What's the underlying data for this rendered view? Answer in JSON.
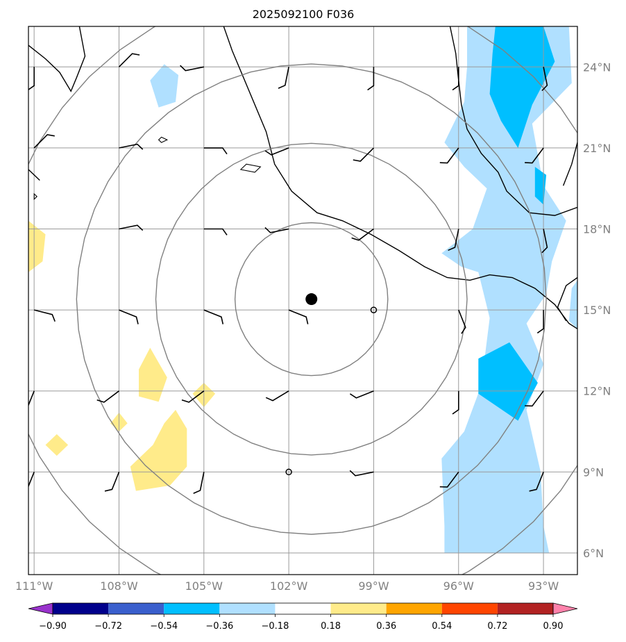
{
  "chart_data": {
    "type": "heatmap",
    "title": "2025092100 F036",
    "projection": "plate-carree",
    "lon_range": [
      -111.2,
      -91.8
    ],
    "lat_range": [
      5.2,
      25.5
    ],
    "lon_ticks": [
      -111,
      -108,
      -105,
      -102,
      -99,
      -96,
      -93
    ],
    "lon_tick_labels": [
      "111°W",
      "108°W",
      "105°W",
      "102°W",
      "99°W",
      "96°W",
      "93°W"
    ],
    "lat_ticks": [
      6,
      9,
      12,
      15,
      18,
      21,
      24
    ],
    "lat_tick_labels": [
      "6°N",
      "9°N",
      "12°N",
      "15°N",
      "18°N",
      "21°N",
      "24°N"
    ],
    "grid": true,
    "center_marker": {
      "lon": -101.2,
      "lat": 15.4
    },
    "range_rings_deg": [
      2.7,
      5.5,
      8.3,
      11.1
    ],
    "colorbar": {
      "orientation": "horizontal",
      "extend": "both",
      "levels": [
        -0.9,
        -0.72,
        -0.54,
        -0.36,
        -0.18,
        0.18,
        0.36,
        0.54,
        0.72,
        0.9
      ],
      "tick_labels": [
        "−0.90",
        "−0.72",
        "−0.54",
        "−0.36",
        "−0.18",
        "0.18",
        "0.36",
        "0.54",
        "0.72",
        "0.90"
      ],
      "colors": [
        "#9932cc",
        "#00008b",
        "#3a5fcd",
        "#00bfff",
        "#b0e0ff",
        "#ffffff",
        "#ffeb8a",
        "#ffa500",
        "#ff4500",
        "#b22222",
        "#ff82ab"
      ]
    },
    "shaded_regions": [
      {
        "level": -0.36,
        "color": "#b0e0ff",
        "points": [
          [
            -95.7,
            25.5
          ],
          [
            -92.1,
            25.5
          ],
          [
            -92.0,
            23.4
          ],
          [
            -93.4,
            21.9
          ],
          [
            -93.0,
            19.6
          ],
          [
            -92.2,
            18.3
          ],
          [
            -92.7,
            16.8
          ],
          [
            -92.9,
            15.6
          ],
          [
            -93.6,
            14.5
          ],
          [
            -93.0,
            13.0
          ],
          [
            -93.6,
            11.3
          ],
          [
            -93.1,
            9.0
          ],
          [
            -93.0,
            7.0
          ],
          [
            -92.8,
            6.0
          ],
          [
            -96.5,
            6.0
          ],
          [
            -96.5,
            7.0
          ],
          [
            -96.6,
            9.5
          ],
          [
            -95.8,
            10.5
          ],
          [
            -95.2,
            12.2
          ],
          [
            -94.9,
            14.7
          ],
          [
            -95.3,
            16.4
          ],
          [
            -95.9,
            16.6
          ],
          [
            -96.6,
            17.1
          ],
          [
            -95.5,
            18.0
          ],
          [
            -95.0,
            19.5
          ],
          [
            -95.8,
            20.3
          ],
          [
            -96.5,
            21.2
          ],
          [
            -95.8,
            22.7
          ],
          [
            -95.7,
            24.0
          ]
        ]
      },
      {
        "level": -0.36,
        "color": "#b0e0ff",
        "points": [
          [
            -91.8,
            16.1
          ],
          [
            -92.0,
            15.8
          ],
          [
            -92.1,
            14.6
          ],
          [
            -91.8,
            14.3
          ]
        ]
      },
      {
        "level": -0.36,
        "color": "#b0e0ff",
        "points": [
          [
            -106.4,
            24.1
          ],
          [
            -105.9,
            23.7
          ],
          [
            -106.0,
            22.7
          ],
          [
            -106.6,
            22.5
          ],
          [
            -106.9,
            23.5
          ]
        ]
      },
      {
        "level": -0.54,
        "color": "#00bfff",
        "points": [
          [
            -94.7,
            25.5
          ],
          [
            -93.0,
            25.5
          ],
          [
            -92.6,
            24.2
          ],
          [
            -93.4,
            22.6
          ],
          [
            -93.9,
            21.0
          ],
          [
            -94.5,
            22.0
          ],
          [
            -94.9,
            23.0
          ],
          [
            -94.8,
            24.5
          ]
        ]
      },
      {
        "level": -0.54,
        "color": "#00bfff",
        "points": [
          [
            -93.3,
            20.3
          ],
          [
            -92.9,
            20.0
          ],
          [
            -93.0,
            18.9
          ],
          [
            -93.3,
            19.2
          ]
        ]
      },
      {
        "level": -0.54,
        "color": "#00bfff",
        "points": [
          [
            -94.2,
            13.8
          ],
          [
            -93.2,
            12.3
          ],
          [
            -93.9,
            10.9
          ],
          [
            -95.3,
            11.9
          ],
          [
            -95.3,
            13.2
          ]
        ]
      },
      {
        "level": 0.18,
        "color": "#ffeb8a",
        "points": [
          [
            -111.2,
            18.3
          ],
          [
            -110.6,
            17.8
          ],
          [
            -110.7,
            16.8
          ],
          [
            -111.2,
            16.4
          ]
        ]
      },
      {
        "level": 0.18,
        "color": "#ffeb8a",
        "points": [
          [
            -106.9,
            13.6
          ],
          [
            -106.3,
            12.5
          ],
          [
            -106.6,
            11.6
          ],
          [
            -107.3,
            11.8
          ],
          [
            -107.3,
            12.8
          ]
        ]
      },
      {
        "level": 0.18,
        "color": "#ffeb8a",
        "points": [
          [
            -105.0,
            12.3
          ],
          [
            -104.6,
            11.9
          ],
          [
            -105.0,
            11.4
          ],
          [
            -105.4,
            11.9
          ]
        ]
      },
      {
        "level": 0.18,
        "color": "#ffeb8a",
        "points": [
          [
            -108.0,
            11.2
          ],
          [
            -107.7,
            10.8
          ],
          [
            -108.0,
            10.5
          ],
          [
            -108.3,
            10.8
          ]
        ]
      },
      {
        "level": 0.18,
        "color": "#ffeb8a",
        "points": [
          [
            -110.2,
            10.4
          ],
          [
            -109.8,
            10.0
          ],
          [
            -110.2,
            9.6
          ],
          [
            -110.6,
            10.0
          ]
        ]
      },
      {
        "level": 0.18,
        "color": "#ffeb8a",
        "points": [
          [
            -106.0,
            11.3
          ],
          [
            -105.6,
            10.6
          ],
          [
            -105.6,
            9.2
          ],
          [
            -106.2,
            8.5
          ],
          [
            -107.4,
            8.3
          ],
          [
            -107.6,
            9.2
          ],
          [
            -106.8,
            10.0
          ],
          [
            -106.4,
            10.8
          ]
        ]
      }
    ],
    "wind_barbs": [
      {
        "lon": -111,
        "lat": 24,
        "u": 0,
        "v": -5
      },
      {
        "lon": -108,
        "lat": 24,
        "u": 3,
        "v": 3
      },
      {
        "lon": -105,
        "lat": 24,
        "u": -5,
        "v": -1
      },
      {
        "lon": -102,
        "lat": 24,
        "u": -1,
        "v": -5
      },
      {
        "lon": -99,
        "lat": 24,
        "u": 0,
        "v": -5
      },
      {
        "lon": -96,
        "lat": 24,
        "u": 0,
        "v": -5
      },
      {
        "lon": -93,
        "lat": 24,
        "u": 1,
        "v": -5
      },
      {
        "lon": -111,
        "lat": 21,
        "u": 3,
        "v": 3
      },
      {
        "lon": -108,
        "lat": 21,
        "u": 5,
        "v": 1
      },
      {
        "lon": -105,
        "lat": 21,
        "u": 5,
        "v": 0
      },
      {
        "lon": -102,
        "lat": 21,
        "u": -5,
        "v": -2
      },
      {
        "lon": -99,
        "lat": 21,
        "u": -4,
        "v": -4
      },
      {
        "lon": -96,
        "lat": 21,
        "u": -3,
        "v": -4
      },
      {
        "lon": -93,
        "lat": 21,
        "u": -3,
        "v": -4
      },
      {
        "lon": -108,
        "lat": 18,
        "u": 5,
        "v": 1
      },
      {
        "lon": -105,
        "lat": 18,
        "u": 5,
        "v": 0
      },
      {
        "lon": -102,
        "lat": 18,
        "u": -5,
        "v": -1
      },
      {
        "lon": -99,
        "lat": 18,
        "u": -4,
        "v": -3
      },
      {
        "lon": -96,
        "lat": 18,
        "u": -1,
        "v": -5
      },
      {
        "lon": -93,
        "lat": 18,
        "u": 1,
        "v": -5
      },
      {
        "lon": -111,
        "lat": 15,
        "u": 4,
        "v": -1
      },
      {
        "lon": -108,
        "lat": 15,
        "u": 5,
        "v": -2
      },
      {
        "lon": -105,
        "lat": 15,
        "u": 5,
        "v": -2
      },
      {
        "lon": -102,
        "lat": 15,
        "u": 5,
        "v": -2
      },
      {
        "lon": -96,
        "lat": 15,
        "u": 2,
        "v": -5
      },
      {
        "lon": -93,
        "lat": 15,
        "u": 0,
        "v": -5
      },
      {
        "lon": -111,
        "lat": 12,
        "u": -2,
        "v": -5
      },
      {
        "lon": -108,
        "lat": 12,
        "u": -4,
        "v": -3
      },
      {
        "lon": -105,
        "lat": 12,
        "u": -4,
        "v": -3
      },
      {
        "lon": -102,
        "lat": 12,
        "u": -5,
        "v": -3
      },
      {
        "lon": -99,
        "lat": 12,
        "u": -5,
        "v": -2
      },
      {
        "lon": -96,
        "lat": 12,
        "u": 0,
        "v": -5
      },
      {
        "lon": -93,
        "lat": 12,
        "u": -3,
        "v": -4
      },
      {
        "lon": -111,
        "lat": 9,
        "u": -2,
        "v": -5
      },
      {
        "lon": -108,
        "lat": 9,
        "u": -2,
        "v": -5
      },
      {
        "lon": -105,
        "lat": 9,
        "u": -1,
        "v": -5
      },
      {
        "lon": -99,
        "lat": 9,
        "u": -5,
        "v": -1
      },
      {
        "lon": -96,
        "lat": 9,
        "u": -3,
        "v": -4
      },
      {
        "lon": -93,
        "lat": 9,
        "u": -2,
        "v": -5
      }
    ],
    "calm_points": [
      {
        "lon": -99,
        "lat": 15
      },
      {
        "lon": -102,
        "lat": 9
      }
    ]
  },
  "coastlines": {
    "mexico_pacific": [
      [
        -104.3,
        25.5
      ],
      [
        -104.0,
        24.6
      ],
      [
        -103.6,
        23.6
      ],
      [
        -103.2,
        22.6
      ],
      [
        -102.8,
        21.6
      ],
      [
        -102.5,
        20.4
      ],
      [
        -101.9,
        19.4
      ],
      [
        -101.0,
        18.6
      ],
      [
        -100.1,
        18.3
      ],
      [
        -99.1,
        17.8
      ],
      [
        -98.1,
        17.2
      ],
      [
        -97.2,
        16.6
      ],
      [
        -96.4,
        16.2
      ],
      [
        -95.6,
        16.1
      ],
      [
        -94.9,
        16.3
      ],
      [
        -94.1,
        16.2
      ],
      [
        -93.3,
        15.8
      ],
      [
        -92.6,
        15.2
      ],
      [
        -92.1,
        14.5
      ],
      [
        -91.8,
        14.3
      ]
    ],
    "mexico_gulf": [
      [
        -96.3,
        25.5
      ],
      [
        -96.1,
        24.5
      ],
      [
        -96.0,
        23.5
      ],
      [
        -95.9,
        22.6
      ],
      [
        -95.7,
        21.7
      ],
      [
        -95.2,
        20.8
      ],
      [
        -94.6,
        20.1
      ],
      [
        -94.3,
        19.4
      ],
      [
        -93.5,
        18.6
      ],
      [
        -92.6,
        18.5
      ],
      [
        -91.8,
        18.8
      ]
    ],
    "baja": [
      [
        -111.2,
        24.8
      ],
      [
        -110.6,
        24.3
      ],
      [
        -110.1,
        23.8
      ],
      [
        -109.7,
        23.1
      ],
      [
        -109.5,
        23.6
      ],
      [
        -109.2,
        24.4
      ],
      [
        -109.4,
        25.5
      ]
    ],
    "yucatan_w": [
      [
        -91.8,
        21.2
      ],
      [
        -92.0,
        20.4
      ],
      [
        -92.3,
        19.6
      ]
    ],
    "guatemala": [
      [
        -91.8,
        16.2
      ],
      [
        -92.2,
        15.9
      ],
      [
        -92.5,
        15.1
      ],
      [
        -92.2,
        14.6
      ]
    ],
    "baja_tip": [
      [
        -111.2,
        20.2
      ],
      [
        -110.8,
        19.8
      ]
    ]
  },
  "islands": [
    {
      "name": "marias",
      "points": [
        [
          -106.5,
          21.4
        ],
        [
          -106.3,
          21.3
        ],
        [
          -106.5,
          21.2
        ],
        [
          -106.6,
          21.3
        ]
      ]
    },
    {
      "name": "revillagigedo",
      "points": [
        [
          -111.0,
          19.3
        ],
        [
          -110.9,
          19.2
        ],
        [
          -111.0,
          19.1
        ]
      ]
    },
    {
      "name": "gulf_islet",
      "points": [
        [
          -103.7,
          20.2
        ],
        [
          -103.2,
          20.1
        ],
        [
          -103.0,
          20.3
        ],
        [
          -103.5,
          20.4
        ]
      ]
    }
  ]
}
